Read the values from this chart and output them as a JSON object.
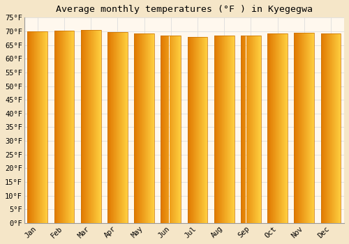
{
  "title": "Average monthly temperatures (°F ) in Kyegegwa",
  "months": [
    "Jan",
    "Feb",
    "Mar",
    "Apr",
    "May",
    "Jun",
    "Jul",
    "Aug",
    "Sep",
    "Oct",
    "Nov",
    "Dec"
  ],
  "values": [
    70.0,
    70.3,
    70.5,
    69.6,
    69.3,
    68.5,
    68.0,
    68.4,
    68.4,
    69.3,
    69.4,
    69.2
  ],
  "bar_color_left": "#E07800",
  "bar_color_right": "#FFD040",
  "bar_edge_color": "#C87000",
  "background_color": "#F5E6C8",
  "plot_bg_color": "#FFF8EE",
  "grid_color": "#DDDDDD",
  "ylim": [
    0,
    75
  ],
  "ytick_step": 5,
  "title_fontsize": 9.5,
  "tick_fontsize": 7.5,
  "font_family": "monospace"
}
